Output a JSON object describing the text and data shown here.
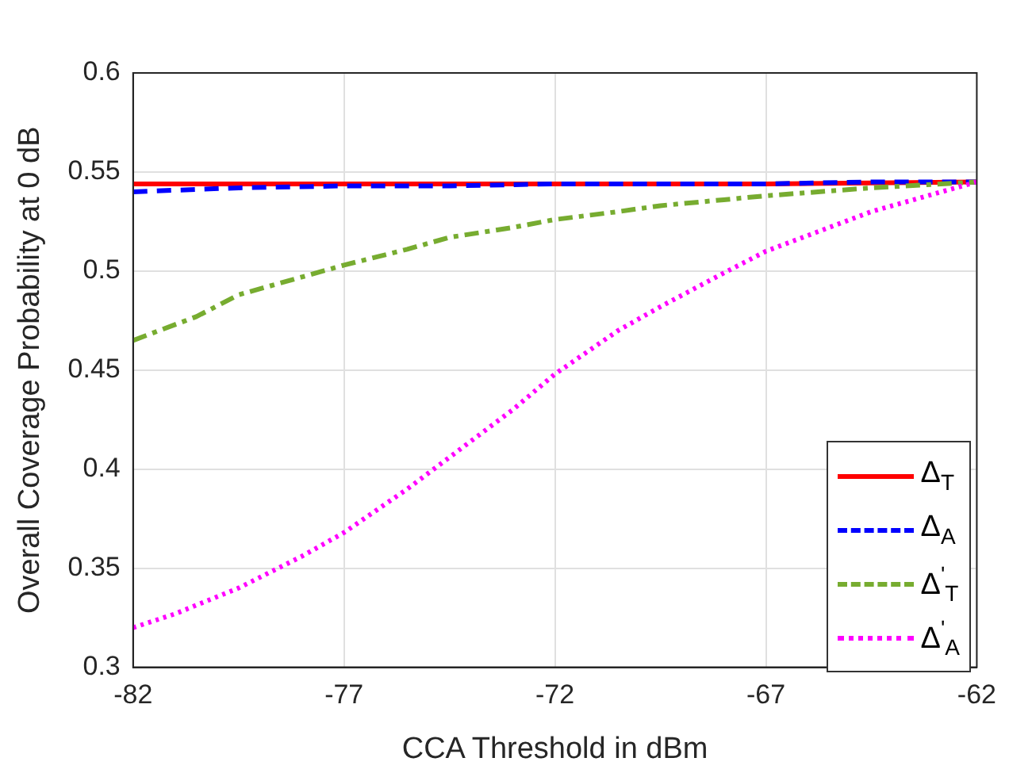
{
  "chart_data": {
    "type": "line",
    "xlabel": "CCA Threshold in dBm",
    "ylabel": "Overall Coverage Probability at 0 dB",
    "xlim": [
      -82,
      -62
    ],
    "xticks": [
      -82,
      -77,
      -72,
      -67,
      -62
    ],
    "ylim": [
      0.3,
      0.6
    ],
    "yticks": [
      0.3,
      0.35,
      0.4,
      0.45,
      0.5,
      0.55,
      0.6
    ],
    "grid": true,
    "legend": "bottom right",
    "marker": "none",
    "series": [
      {
        "name": "Δ$_{T}$",
        "color": "#ff0000",
        "line_style": "solid",
        "x": [
          -82,
          -77,
          -72,
          -67,
          -62
        ],
        "values": [
          0.544,
          0.544,
          0.544,
          0.544,
          0.545
        ]
      },
      {
        "name": "Δ$_{A}$",
        "color": "#0000ff",
        "line_style": "dashed",
        "x": [
          -82,
          -79.5,
          -77,
          -74.5,
          -72,
          -69.5,
          -67,
          -64.5,
          -62
        ],
        "values": [
          0.54,
          0.542,
          0.543,
          0.543,
          0.544,
          0.544,
          0.544,
          0.545,
          0.545
        ]
      },
      {
        "name": "Δ$^{'}$$_{T}$",
        "color": "#77ac30",
        "line_style": "dashdot",
        "x": [
          -82,
          -80.5,
          -79.5,
          -78,
          -77,
          -75.5,
          -74.5,
          -73,
          -72,
          -70.5,
          -69.5,
          -68,
          -67,
          -64.5,
          -62
        ],
        "values": [
          0.465,
          0.477,
          0.488,
          0.497,
          0.503,
          0.511,
          0.517,
          0.522,
          0.526,
          0.53,
          0.533,
          0.536,
          0.538,
          0.542,
          0.545
        ]
      },
      {
        "name": "Δ$^{'}$$_{A}$",
        "color": "#ff00ff",
        "line_style": "dotted",
        "x": [
          -82,
          -81,
          -79.5,
          -78,
          -77,
          -75.5,
          -74.5,
          -73,
          -72,
          -70.5,
          -69.5,
          -68,
          -67,
          -65.5,
          -64.5,
          -63,
          -62
        ],
        "values": [
          0.32,
          0.327,
          0.34,
          0.356,
          0.368,
          0.39,
          0.406,
          0.43,
          0.448,
          0.47,
          0.482,
          0.499,
          0.51,
          0.522,
          0.53,
          0.539,
          0.545
        ]
      }
    ]
  }
}
